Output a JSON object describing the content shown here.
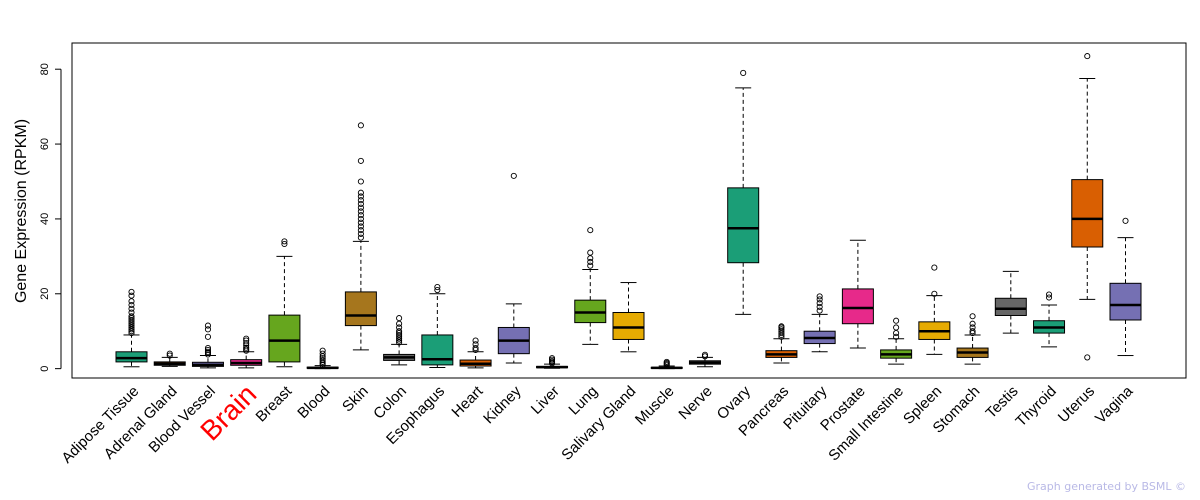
{
  "footer": "Graph generated by BSML ©",
  "chart_data": {
    "type": "box",
    "ylabel": "Gene Expression (RPKM)",
    "xlabel": "",
    "ylim": [
      -2.5,
      87
    ],
    "yticks": [
      0,
      20,
      40,
      60,
      80
    ],
    "highlight": "Brain",
    "highlight_color": "#ff0000",
    "categories": [
      "Adipose Tissue",
      "Adrenal Gland",
      "Blood Vessel",
      "Brain",
      "Breast",
      "Blood",
      "Skin",
      "Colon",
      "Esophagus",
      "Heart",
      "Kidney",
      "Liver",
      "Lung",
      "Salivary Gland",
      "Muscle",
      "Nerve",
      "Ovary",
      "Pancreas",
      "Pituitary",
      "Prostate",
      "Small Intestine",
      "Spleen",
      "Stomach",
      "Testis",
      "Thyroid",
      "Uterus",
      "Vagina"
    ],
    "boxes": [
      {
        "name": "Adipose Tissue",
        "color": "#1b9e77",
        "whisker_low": 0.5,
        "q1": 1.8,
        "median": 2.8,
        "q3": 4.5,
        "whisker_high": 9,
        "outliers": [
          9.5,
          10,
          10.5,
          11,
          11.5,
          12,
          12.5,
          13,
          13.5,
          14,
          15,
          16,
          17,
          18,
          19.5,
          20.5
        ]
      },
      {
        "name": "Adrenal Gland",
        "color": "#d95f02",
        "whisker_low": 0.6,
        "q1": 0.9,
        "median": 1.3,
        "q3": 1.8,
        "whisker_high": 3.0,
        "outliers": [
          3.5,
          4.0
        ]
      },
      {
        "name": "Blood Vessel",
        "color": "#7570b3",
        "whisker_low": 0.2,
        "q1": 0.6,
        "median": 1.0,
        "q3": 1.7,
        "whisker_high": 3.5,
        "outliers": [
          3.8,
          4.2,
          4.5,
          5.0,
          5.5,
          8.5,
          10.5,
          11.5
        ]
      },
      {
        "name": "Brain",
        "color": "#e7298a",
        "whisker_low": 0.2,
        "q1": 0.9,
        "median": 1.5,
        "q3": 2.4,
        "whisker_high": 4.5,
        "outliers": [
          4.8,
          5.2,
          5.6,
          6.2,
          6.8,
          7.5,
          8.0
        ]
      },
      {
        "name": "Breast",
        "color": "#66a61e",
        "whisker_low": 0.5,
        "q1": 1.8,
        "median": 7.5,
        "q3": 14.3,
        "whisker_high": 30,
        "outliers": [
          33.3,
          34
        ]
      },
      {
        "name": "Blood",
        "color": "#e6ab02",
        "whisker_low": 0,
        "q1": 0.1,
        "median": 0.2,
        "q3": 0.4,
        "whisker_high": 0.8,
        "outliers": [
          1.0,
          1.4,
          1.8,
          2.3,
          2.8,
          3.3,
          4.0,
          4.8
        ]
      },
      {
        "name": "Skin",
        "color": "#a6761d",
        "whisker_low": 5,
        "q1": 11.5,
        "median": 14.2,
        "q3": 20.5,
        "whisker_high": 34,
        "outliers": [
          35,
          36,
          37,
          38,
          39,
          40,
          41,
          42,
          43,
          44,
          45,
          46,
          47,
          50,
          55.5,
          65
        ]
      },
      {
        "name": "Colon",
        "color": "#666666",
        "whisker_low": 1.0,
        "q1": 2.2,
        "median": 3.0,
        "q3": 3.8,
        "whisker_high": 6.5,
        "outliers": [
          7,
          7.5,
          8,
          8.5,
          9,
          9.5,
          10,
          11,
          12,
          13.5
        ]
      },
      {
        "name": "Esophagus",
        "color": "#1b9e77",
        "whisker_low": 0.3,
        "q1": 1.0,
        "median": 2.5,
        "q3": 9.0,
        "whisker_high": 20,
        "outliers": [
          21,
          21.8
        ]
      },
      {
        "name": "Heart",
        "color": "#d95f02",
        "whisker_low": 0.2,
        "q1": 0.7,
        "median": 1.3,
        "q3": 2.3,
        "whisker_high": 4.5,
        "outliers": [
          5.0,
          5.5,
          6.5,
          7.5
        ]
      },
      {
        "name": "Kidney",
        "color": "#7570b3",
        "whisker_low": 1.5,
        "q1": 4.0,
        "median": 7.5,
        "q3": 11.0,
        "whisker_high": 17.3,
        "outliers": [
          51.5
        ]
      },
      {
        "name": "Liver",
        "color": "#e7298a",
        "whisker_low": 0.1,
        "q1": 0.25,
        "median": 0.4,
        "q3": 0.6,
        "whisker_high": 1.2,
        "outliers": [
          1.4,
          1.7,
          2.0,
          2.4,
          2.8
        ]
      },
      {
        "name": "Lung",
        "color": "#66a61e",
        "whisker_low": 6.5,
        "q1": 12.3,
        "median": 15.0,
        "q3": 18.3,
        "whisker_high": 26.5,
        "outliers": [
          27.5,
          28.5,
          29.5,
          31,
          37
        ]
      },
      {
        "name": "Salivary Gland",
        "color": "#e6ab02",
        "whisker_low": 4.5,
        "q1": 7.8,
        "median": 11.0,
        "q3": 15.0,
        "whisker_high": 23,
        "outliers": []
      },
      {
        "name": "Muscle",
        "color": "#a6761d",
        "whisker_low": 0,
        "q1": 0.1,
        "median": 0.2,
        "q3": 0.35,
        "whisker_high": 0.7,
        "outliers": [
          0.9,
          1.2,
          1.5,
          1.8
        ]
      },
      {
        "name": "Nerve",
        "color": "#666666",
        "whisker_low": 0.5,
        "q1": 1.2,
        "median": 1.6,
        "q3": 2.1,
        "whisker_high": 3.0,
        "outliers": [
          3.3,
          3.7
        ]
      },
      {
        "name": "Ovary",
        "color": "#1b9e77",
        "whisker_low": 14.5,
        "q1": 28.3,
        "median": 37.5,
        "q3": 48.3,
        "whisker_high": 75,
        "outliers": [
          79
        ]
      },
      {
        "name": "Pancreas",
        "color": "#d95f02",
        "whisker_low": 1.5,
        "q1": 3.0,
        "median": 3.8,
        "q3": 4.8,
        "whisker_high": 8,
        "outliers": [
          8.5,
          9,
          9.5,
          10,
          10.5,
          11,
          11.3
        ]
      },
      {
        "name": "Pituitary",
        "color": "#7570b3",
        "whisker_low": 4.5,
        "q1": 6.7,
        "median": 8.2,
        "q3": 10.0,
        "whisker_high": 14.5,
        "outliers": [
          15.5,
          16.5,
          17.5,
          18.5,
          19.3
        ]
      },
      {
        "name": "Prostate",
        "color": "#e7298a",
        "whisker_low": 5.5,
        "q1": 12.0,
        "median": 16.2,
        "q3": 21.3,
        "whisker_high": 34.3,
        "outliers": []
      },
      {
        "name": "Small Intestine",
        "color": "#66a61e",
        "whisker_low": 1.2,
        "q1": 2.8,
        "median": 3.8,
        "q3": 5.0,
        "whisker_high": 8,
        "outliers": [
          8.5,
          9.5,
          11,
          12.8
        ]
      },
      {
        "name": "Spleen",
        "color": "#e6ab02",
        "whisker_low": 3.8,
        "q1": 7.8,
        "median": 10.0,
        "q3": 12.5,
        "whisker_high": 19.5,
        "outliers": [
          20,
          27
        ]
      },
      {
        "name": "Stomach",
        "color": "#a6761d",
        "whisker_low": 1.2,
        "q1": 3.0,
        "median": 4.3,
        "q3": 5.5,
        "whisker_high": 9,
        "outliers": [
          9.5,
          10,
          11,
          12,
          14
        ]
      },
      {
        "name": "Testis",
        "color": "#666666",
        "whisker_low": 9.5,
        "q1": 14.2,
        "median": 16.0,
        "q3": 18.8,
        "whisker_high": 26,
        "outliers": []
      },
      {
        "name": "Thyroid",
        "color": "#1b9e77",
        "whisker_low": 5.8,
        "q1": 9.5,
        "median": 11.0,
        "q3": 12.8,
        "whisker_high": 17,
        "outliers": [
          19,
          19.8
        ]
      },
      {
        "name": "Uterus",
        "color": "#d95f02",
        "whisker_low": 18.5,
        "q1": 32.5,
        "median": 40.0,
        "q3": 50.5,
        "whisker_high": 77.5,
        "outliers": [
          3,
          83.5
        ]
      },
      {
        "name": "Vagina",
        "color": "#7570b3",
        "whisker_low": 3.5,
        "q1": 13.0,
        "median": 17.0,
        "q3": 22.8,
        "whisker_high": 35,
        "outliers": [
          39.5
        ]
      }
    ]
  }
}
